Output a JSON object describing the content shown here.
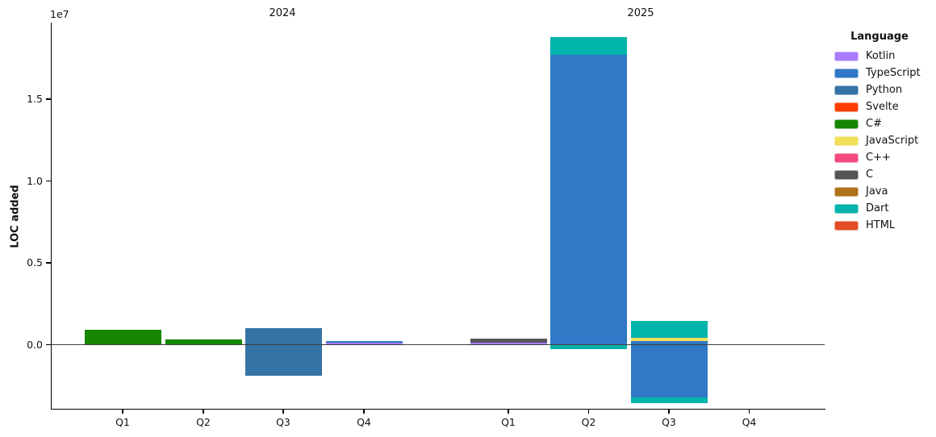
{
  "figure": {
    "offset_text": "1e7"
  },
  "legend": {
    "title": "Language",
    "items": [
      {
        "label": "Kotlin",
        "color": "#A97BFF"
      },
      {
        "label": "TypeScript",
        "color": "#3178C6"
      },
      {
        "label": "Python",
        "color": "#3572A5"
      },
      {
        "label": "Svelte",
        "color": "#FF3E00"
      },
      {
        "label": "C#",
        "color": "#178600"
      },
      {
        "label": "JavaScript",
        "color": "#F1E05A"
      },
      {
        "label": "C++",
        "color": "#F34B7D"
      },
      {
        "label": "C",
        "color": "#555555"
      },
      {
        "label": "Java",
        "color": "#B07219"
      },
      {
        "label": "Dart",
        "color": "#00B4AB"
      },
      {
        "label": "HTML",
        "color": "#E34C26"
      }
    ]
  },
  "chart_data": {
    "type": "bar",
    "stacked": true,
    "title": "",
    "xlabel": "",
    "ylabel": "LOC added",
    "y_offset_text": "1e7",
    "grid": false,
    "legend_title": "Language",
    "legend_position": "outside-right",
    "group_titles": [
      "2024",
      "2025"
    ],
    "x_tick_labels": [
      "Q1",
      "Q2",
      "Q3",
      "Q4",
      "Q1",
      "Q2",
      "Q3",
      "Q4"
    ],
    "y_ticks": [
      {
        "value": 0,
        "label": "0.0"
      },
      {
        "value": 5000000,
        "label": "0.5"
      },
      {
        "value": 10000000,
        "label": "1.0"
      },
      {
        "value": 15000000,
        "label": "1.5"
      }
    ],
    "ylim": [
      -3900000,
      19700000
    ],
    "bars": [
      {
        "group": "2024",
        "quarter": "Q1",
        "segments": [
          {
            "language": "C#",
            "value": 900000
          }
        ]
      },
      {
        "group": "2024",
        "quarter": "Q2",
        "segments": [
          {
            "language": "C#",
            "value": 300000
          }
        ]
      },
      {
        "group": "2024",
        "quarter": "Q3",
        "segments": [
          {
            "language": "Python",
            "value": 1000000
          },
          {
            "language": "Python",
            "value": -1900000
          }
        ]
      },
      {
        "group": "2024",
        "quarter": "Q4",
        "segments": [
          {
            "language": "Kotlin",
            "value": 100000
          },
          {
            "language": "TypeScript",
            "value": 100000
          }
        ]
      },
      {
        "group": "2025",
        "quarter": "Q1",
        "segments": [
          {
            "language": "Kotlin",
            "value": 130000
          },
          {
            "language": "C",
            "value": 220000
          }
        ]
      },
      {
        "group": "2025",
        "quarter": "Q2",
        "segments": [
          {
            "language": "TypeScript",
            "value": 17700000
          },
          {
            "language": "Dart",
            "value": 1100000
          },
          {
            "language": "Dart",
            "value": -250000
          }
        ]
      },
      {
        "group": "2025",
        "quarter": "Q3",
        "segments": [
          {
            "language": "TypeScript",
            "value": 240000
          },
          {
            "language": "JavaScript",
            "value": 170000
          },
          {
            "language": "Dart",
            "value": 1020000
          },
          {
            "language": "TypeScript",
            "value": -3250000
          },
          {
            "language": "Dart",
            "value": -300000
          }
        ]
      },
      {
        "group": "2025",
        "quarter": "Q4",
        "segments": []
      }
    ]
  }
}
